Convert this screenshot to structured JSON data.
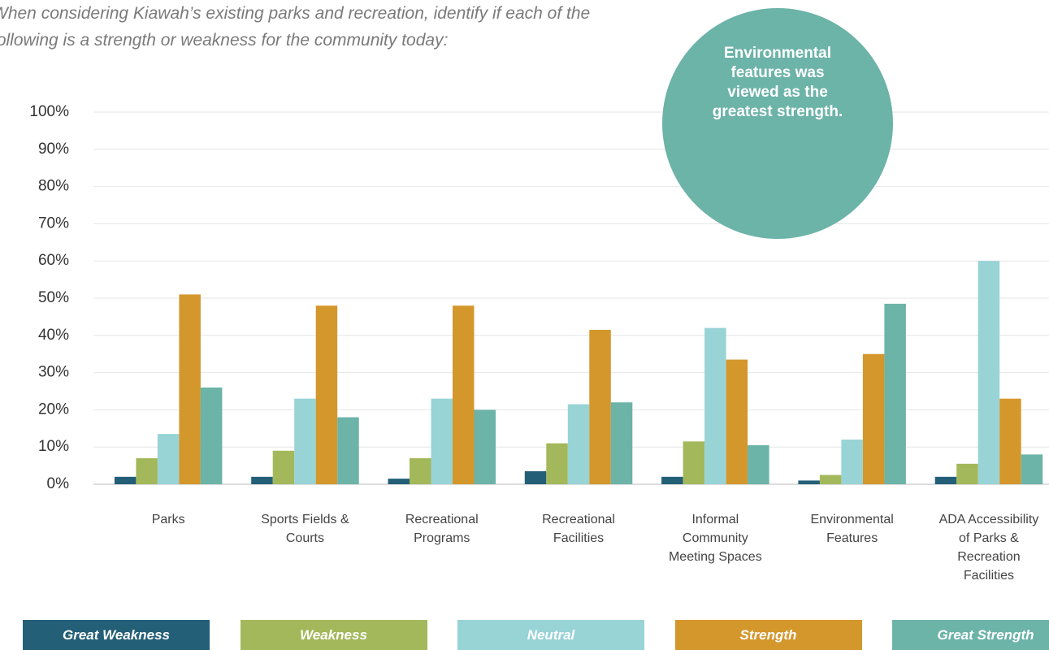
{
  "chart_data": {
    "type": "bar",
    "title": "When considering Kiawah’s existing parks and recreation, identify if each of the following is a strength or weakness for the community today:",
    "annotation": "Environmental features was viewed as the greatest strength.",
    "categories": [
      "Parks",
      "Sports Fields & Courts",
      "Recreational Programs",
      "Recreational Facilities",
      "Informal Community Meeting Spaces",
      "Environmental Features",
      "ADA Accessibility of Parks & Recreation Facilities"
    ],
    "series": [
      {
        "name": "Great Weakness",
        "color": "#245f78",
        "values": [
          2,
          2,
          1.5,
          3.5,
          2,
          1,
          2
        ]
      },
      {
        "name": "Weakness",
        "color": "#a3b85a",
        "values": [
          7,
          9,
          7,
          11,
          11.5,
          2.5,
          5.5
        ]
      },
      {
        "name": "Neutral",
        "color": "#98d3d6",
        "values": [
          13.5,
          23,
          23,
          21.5,
          42,
          12,
          60
        ]
      },
      {
        "name": "Strength",
        "color": "#d4972c",
        "values": [
          51,
          48,
          48,
          41.5,
          33.5,
          35,
          23
        ]
      },
      {
        "name": "Great Strength",
        "color": "#6cb3a8",
        "values": [
          26,
          18,
          20,
          22,
          10.5,
          48.5,
          8
        ]
      }
    ],
    "ylim": [
      0,
      100
    ],
    "yticks": [
      {
        "value": 0,
        "label": "0%"
      },
      {
        "value": 10,
        "label": "10%"
      },
      {
        "value": 20,
        "label": "20%"
      },
      {
        "value": 30,
        "label": "30%"
      },
      {
        "value": 40,
        "label": "40%"
      },
      {
        "value": 50,
        "label": "50%"
      },
      {
        "value": 60,
        "label": "60%"
      },
      {
        "value": 70,
        "label": "70%"
      },
      {
        "value": 80,
        "label": "80%"
      },
      {
        "value": 90,
        "label": "90%"
      },
      {
        "value": 100,
        "label": "100%"
      }
    ],
    "grid": true
  }
}
